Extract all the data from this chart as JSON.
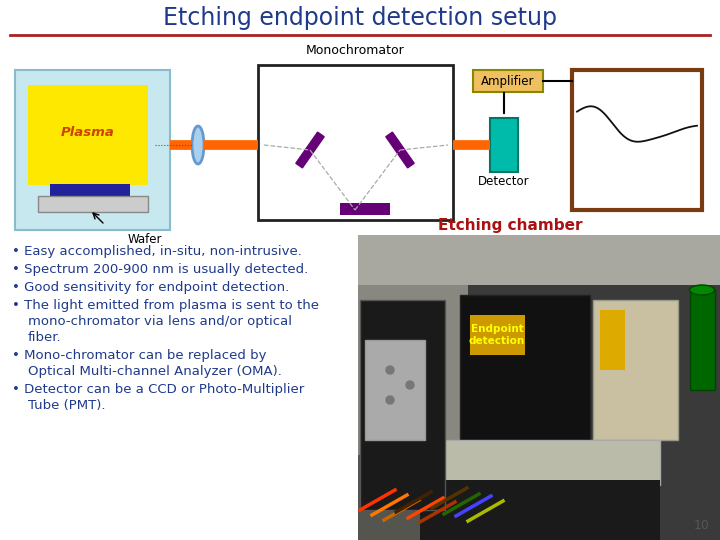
{
  "title": "Etching endpoint detection setup",
  "title_color": "#1F3A8A",
  "title_fontsize": 17,
  "bg_color": "#FFFFFF",
  "red_line_color": "#AA2222",
  "bullet_points": [
    "Easy accomplished, in-situ, non-intrusive.",
    "Spectrum 200-900 nm is usually detected.",
    "Good sensitivity for endpoint detection.",
    "The light emitted from plasma is sent to the\nmono-chromator via lens and/or optical\nfiber.",
    "Mono-chromator can be replaced by\nOptical Multi-channel Analyzer (OMA).",
    "Detector can be a CCD or Photo-Multiplier\nTube (PMT)."
  ],
  "bullet_color": "#1F3A8A",
  "bullet_fontsize": 9.5,
  "etching_chamber_label": "Etching chamber",
  "etching_chamber_color": "#AA1111",
  "endpoint_label": "Endpoint\ndetection",
  "endpoint_text_color": "#FFFF00",
  "page_number": "10",
  "plasma_label": "Plasma",
  "wafer_label": "Wafer",
  "mono_label": "Monochromator",
  "amp_label": "Amplifier",
  "det_label": "Detector",
  "plasma_box_color": "#C8E8F0",
  "plasma_fill_color": "#FFE800",
  "wafer_bar_color": "#22229A",
  "beam_color": "#FF6600",
  "lens_color": "#6699CC",
  "mirror_color": "#660077",
  "detector_color": "#00BBAA",
  "amp_fill": "#F0C060",
  "amp_border": "#888800",
  "graph_border": "#7B3B10",
  "mono_border": "#222222"
}
